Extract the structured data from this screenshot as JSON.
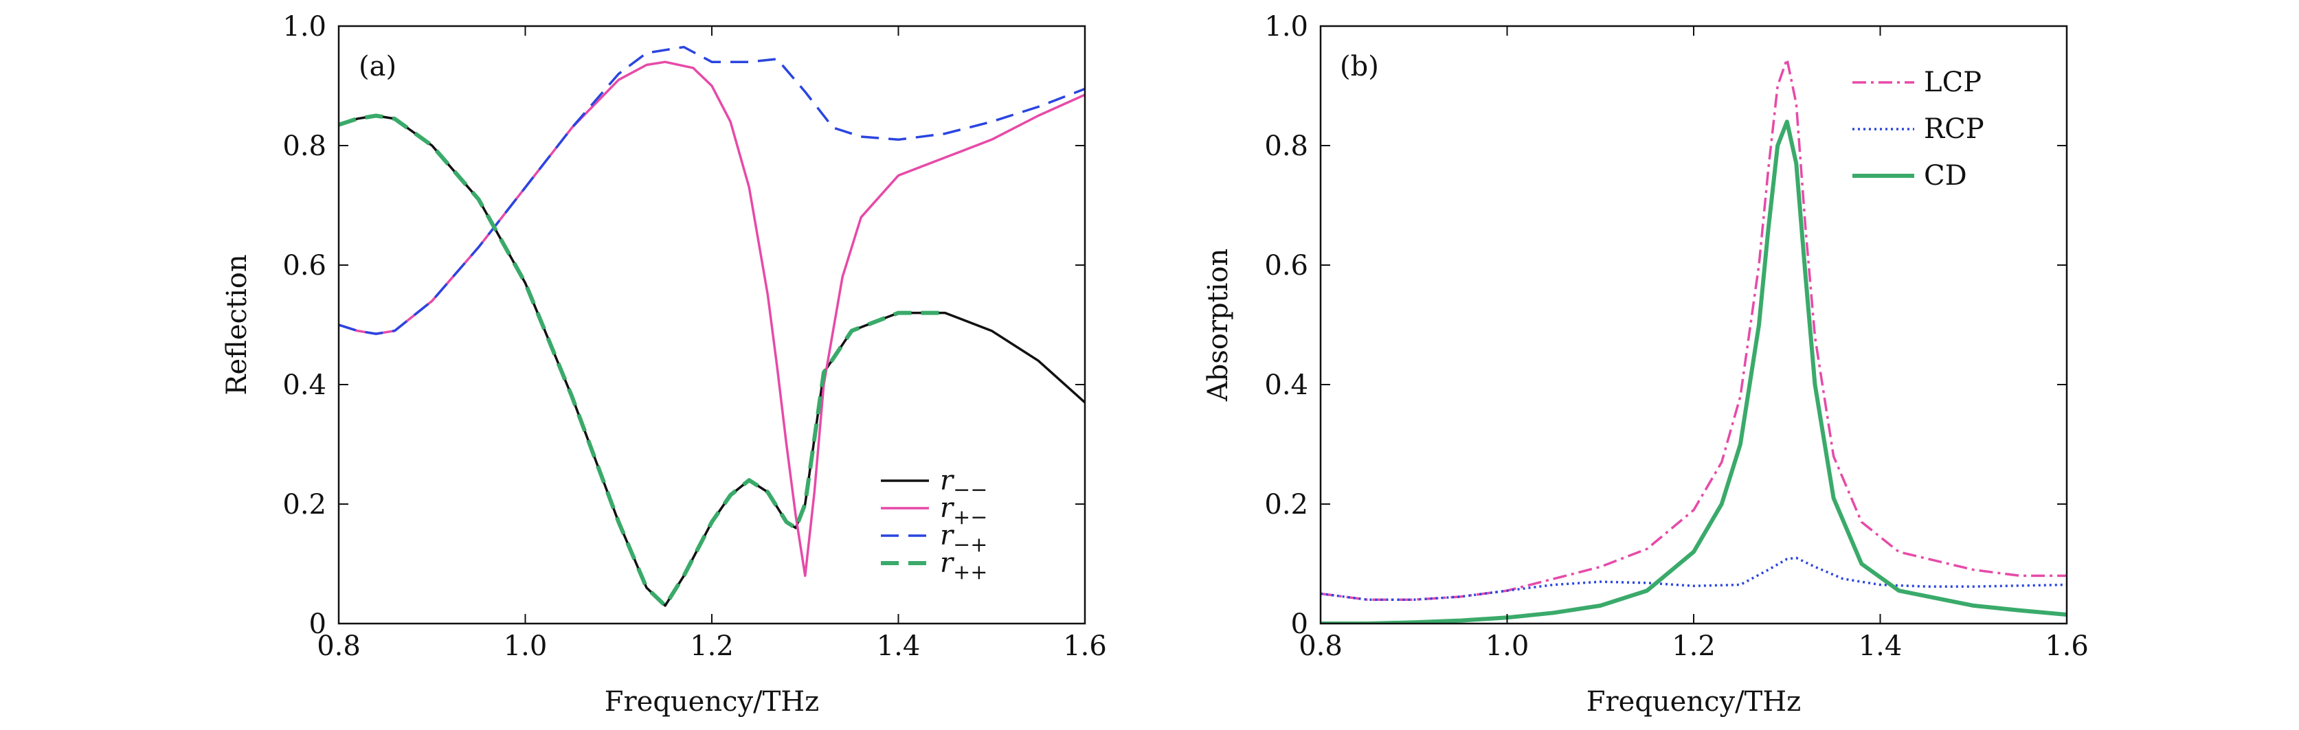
{
  "chart_data": [
    {
      "type": "line",
      "panel_label": "(a)",
      "xlabel": "Frequency/THz",
      "ylabel": "Reflection",
      "xlim": [
        0.8,
        1.6
      ],
      "ylim": [
        0,
        1.0
      ],
      "xticks": [
        0.8,
        1.0,
        1.2,
        1.4,
        1.6
      ],
      "xtick_labels": [
        "0.8",
        "1.0",
        "1.2",
        "1.4",
        "1.6"
      ],
      "yticks": [
        0,
        0.2,
        0.4,
        0.6,
        0.8,
        1.0
      ],
      "ytick_labels": [
        "0",
        "0.2",
        "0.4",
        "0.6",
        "0.8",
        "1.0"
      ],
      "legend_position": "lower-right",
      "series": [
        {
          "name_main": "r",
          "name_sub": "−−",
          "color": "#111111",
          "style": "solid",
          "x": [
            0.8,
            0.82,
            0.84,
            0.86,
            0.9,
            0.95,
            1.0,
            1.05,
            1.1,
            1.13,
            1.15,
            1.17,
            1.2,
            1.22,
            1.24,
            1.26,
            1.28,
            1.29,
            1.3,
            1.32,
            1.35,
            1.4,
            1.45,
            1.5,
            1.55,
            1.6
          ],
          "y": [
            0.835,
            0.845,
            0.85,
            0.845,
            0.8,
            0.71,
            0.57,
            0.38,
            0.17,
            0.06,
            0.03,
            0.08,
            0.17,
            0.215,
            0.24,
            0.22,
            0.17,
            0.16,
            0.2,
            0.42,
            0.49,
            0.52,
            0.52,
            0.49,
            0.44,
            0.37
          ]
        },
        {
          "name_main": "r",
          "name_sub": "+−",
          "color": "#e64aa8",
          "style": "solid",
          "x": [
            0.8,
            0.82,
            0.84,
            0.86,
            0.9,
            0.95,
            1.0,
            1.05,
            1.1,
            1.13,
            1.15,
            1.18,
            1.2,
            1.22,
            1.24,
            1.26,
            1.27,
            1.28,
            1.29,
            1.3,
            1.31,
            1.32,
            1.34,
            1.36,
            1.4,
            1.45,
            1.5,
            1.55,
            1.6
          ],
          "y": [
            0.5,
            0.49,
            0.485,
            0.49,
            0.54,
            0.63,
            0.73,
            0.83,
            0.91,
            0.935,
            0.94,
            0.93,
            0.9,
            0.84,
            0.73,
            0.55,
            0.43,
            0.3,
            0.18,
            0.08,
            0.22,
            0.4,
            0.58,
            0.68,
            0.75,
            0.78,
            0.81,
            0.85,
            0.885
          ]
        },
        {
          "name_main": "r",
          "name_sub": "−+",
          "color": "#2a45e0",
          "style": "dashed",
          "x": [
            0.8,
            0.82,
            0.84,
            0.86,
            0.9,
            0.95,
            1.0,
            1.05,
            1.1,
            1.13,
            1.15,
            1.17,
            1.2,
            1.24,
            1.27,
            1.3,
            1.33,
            1.36,
            1.4,
            1.45,
            1.5,
            1.55,
            1.6
          ],
          "y": [
            0.5,
            0.49,
            0.485,
            0.49,
            0.54,
            0.63,
            0.73,
            0.83,
            0.92,
            0.955,
            0.96,
            0.965,
            0.94,
            0.94,
            0.945,
            0.89,
            0.83,
            0.815,
            0.81,
            0.82,
            0.84,
            0.865,
            0.895
          ]
        },
        {
          "name_main": "r",
          "name_sub": "++",
          "color": "#3aaa6a",
          "style": "dashed",
          "x": [
            0.8,
            0.82,
            0.84,
            0.86,
            0.9,
            0.95,
            1.0,
            1.05,
            1.1,
            1.13,
            1.15,
            1.17,
            1.2,
            1.22,
            1.24,
            1.26,
            1.28,
            1.29,
            1.3,
            1.32,
            1.35,
            1.4,
            1.45
          ],
          "y": [
            0.835,
            0.845,
            0.85,
            0.845,
            0.8,
            0.71,
            0.57,
            0.38,
            0.17,
            0.06,
            0.03,
            0.08,
            0.17,
            0.215,
            0.24,
            0.22,
            0.17,
            0.16,
            0.2,
            0.42,
            0.49,
            0.52,
            0.52
          ]
        }
      ]
    },
    {
      "type": "line",
      "panel_label": "(b)",
      "xlabel": "Frequency/THz",
      "ylabel": "Absorption",
      "xlim": [
        0.8,
        1.6
      ],
      "ylim": [
        0,
        1.0
      ],
      "xticks": [
        0.8,
        1.0,
        1.2,
        1.4,
        1.6
      ],
      "xtick_labels": [
        "0.8",
        "1.0",
        "1.2",
        "1.4",
        "1.6"
      ],
      "yticks": [
        0,
        0.2,
        0.4,
        0.6,
        0.8,
        1.0
      ],
      "ytick_labels": [
        "0",
        "0.2",
        "0.4",
        "0.6",
        "0.8",
        "1.0"
      ],
      "legend_position": "top-right",
      "series": [
        {
          "name": "LCP",
          "color": "#e64aa8",
          "style": "dashdot",
          "x": [
            0.8,
            0.85,
            0.9,
            0.95,
            1.0,
            1.05,
            1.1,
            1.15,
            1.2,
            1.23,
            1.25,
            1.27,
            1.28,
            1.29,
            1.3,
            1.31,
            1.32,
            1.33,
            1.35,
            1.38,
            1.42,
            1.5,
            1.55,
            1.6
          ],
          "y": [
            0.05,
            0.04,
            0.04,
            0.045,
            0.055,
            0.075,
            0.095,
            0.125,
            0.19,
            0.27,
            0.38,
            0.6,
            0.76,
            0.9,
            0.945,
            0.87,
            0.66,
            0.48,
            0.28,
            0.17,
            0.12,
            0.09,
            0.08,
            0.08
          ]
        },
        {
          "name": "RCP",
          "color": "#2a45e0",
          "style": "dotted",
          "x": [
            0.8,
            0.85,
            0.9,
            0.95,
            1.0,
            1.05,
            1.1,
            1.15,
            1.2,
            1.25,
            1.28,
            1.3,
            1.31,
            1.33,
            1.36,
            1.4,
            1.45,
            1.5,
            1.6
          ],
          "y": [
            0.05,
            0.04,
            0.04,
            0.045,
            0.055,
            0.065,
            0.07,
            0.068,
            0.063,
            0.065,
            0.09,
            0.108,
            0.11,
            0.095,
            0.075,
            0.065,
            0.062,
            0.062,
            0.065
          ]
        },
        {
          "name": "CD",
          "color": "#3aaa6a",
          "style": "solid",
          "x": [
            0.8,
            0.85,
            0.9,
            0.95,
            1.0,
            1.05,
            1.1,
            1.15,
            1.2,
            1.23,
            1.25,
            1.27,
            1.28,
            1.29,
            1.3,
            1.31,
            1.32,
            1.33,
            1.35,
            1.38,
            1.42,
            1.5,
            1.55,
            1.6
          ],
          "y": [
            0.0,
            0.0,
            0.002,
            0.005,
            0.01,
            0.018,
            0.03,
            0.055,
            0.12,
            0.2,
            0.3,
            0.5,
            0.66,
            0.8,
            0.84,
            0.77,
            0.58,
            0.4,
            0.21,
            0.1,
            0.055,
            0.03,
            0.022,
            0.015
          ]
        }
      ]
    }
  ]
}
